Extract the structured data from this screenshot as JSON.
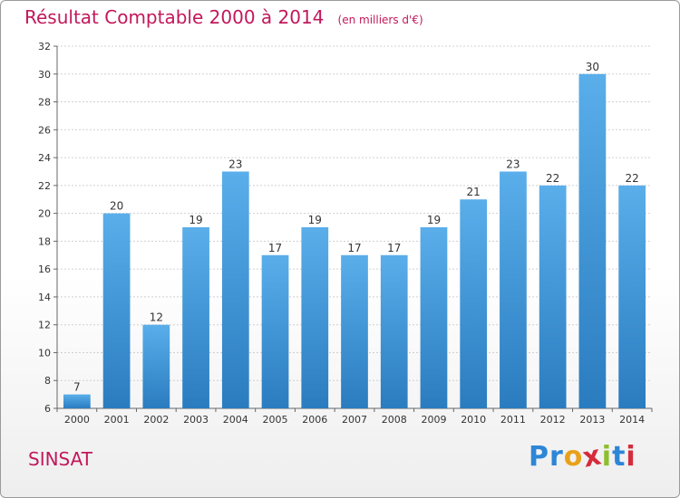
{
  "header": {
    "title": "Résultat Comptable 2000 à 2014",
    "subtitle": "(en milliers d'€)"
  },
  "footer": {
    "place": "SINSAT",
    "logo_letters": [
      {
        "ch": "P",
        "color": "#2d86d6"
      },
      {
        "ch": "r",
        "color": "#2d86d6"
      },
      {
        "ch": "o",
        "color": "#e8a11a"
      },
      {
        "ch": "x",
        "color": "#d42c3c"
      },
      {
        "ch": "i",
        "color": "#8dbf2d"
      },
      {
        "ch": "t",
        "color": "#2d86d6"
      },
      {
        "ch": "i",
        "color": "#d42c3c"
      }
    ]
  },
  "colors": {
    "bar_light": "#5aaeea",
    "bar_dark": "#2a7cbf",
    "title": "#c2185b",
    "grid": "#d0d0d0",
    "axis_text": "#333333"
  },
  "chart_data": {
    "type": "bar",
    "title": "Résultat Comptable 2000 à 2014",
    "subtitle": "(en milliers d'€)",
    "xlabel": "",
    "ylabel": "",
    "categories": [
      "2000",
      "2001",
      "2002",
      "2003",
      "2004",
      "2005",
      "2006",
      "2007",
      "2008",
      "2009",
      "2010",
      "2011",
      "2012",
      "2013",
      "2014"
    ],
    "values": [
      7,
      20,
      12,
      19,
      23,
      17,
      19,
      17,
      17,
      19,
      21,
      23,
      22,
      30,
      22
    ],
    "data_labels": [
      "7",
      "20",
      "12",
      "19",
      "23",
      "17",
      "19",
      "17",
      "17",
      "19",
      "21",
      "23",
      "22",
      "30",
      "22"
    ],
    "ylim": [
      6,
      32
    ],
    "yticks": [
      "6",
      "8",
      "10",
      "12",
      "14",
      "16",
      "18",
      "20",
      "22",
      "24",
      "26",
      "28",
      "30",
      "32"
    ],
    "grid": true,
    "legend": "none"
  }
}
